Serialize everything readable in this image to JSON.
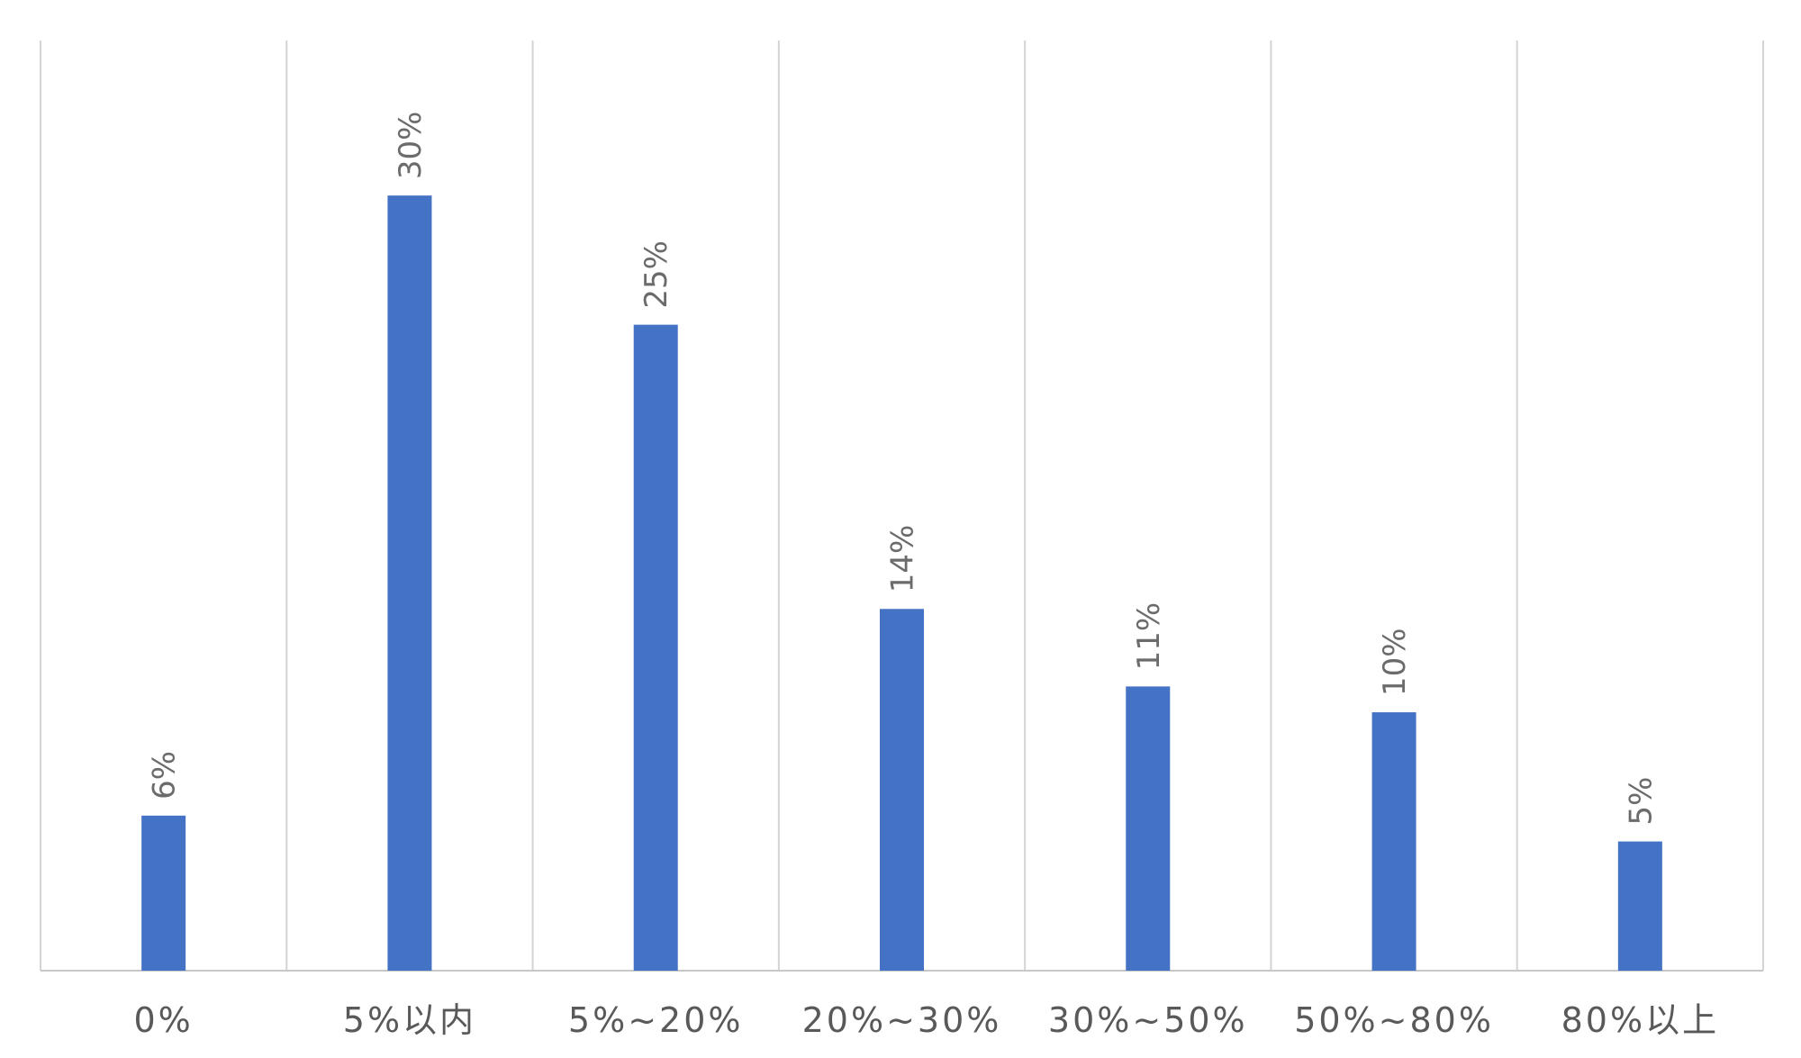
{
  "chart_data": {
    "type": "bar",
    "categories": [
      "0%",
      "5%以内",
      "5%~20%",
      "20%~30%",
      "30%~50%",
      "50%~80%",
      "80%以上"
    ],
    "values": [
      6,
      30,
      25,
      14,
      11,
      10,
      5
    ],
    "data_labels": [
      "6%",
      "30%",
      "25%",
      "14%",
      "11%",
      "10%",
      "5%"
    ],
    "title": "",
    "xlabel": "",
    "ylabel": "",
    "ylim": [
      0,
      36
    ],
    "grid": "vertical separators between categories",
    "legend": "none",
    "bar_color": "#4472c4"
  }
}
